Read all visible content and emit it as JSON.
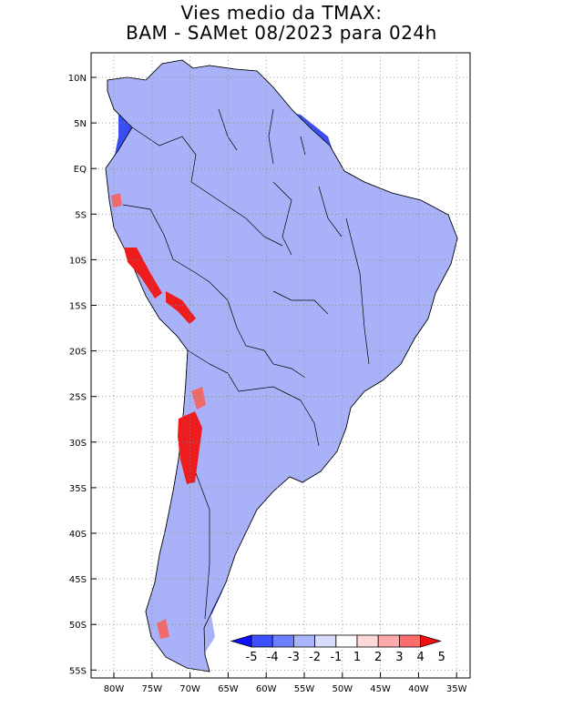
{
  "title": {
    "line1": "Vies medio da TMAX:",
    "line2": "BAM - SAMet 08/2023  para 024h"
  },
  "map": {
    "region": "South America",
    "lat_labels": [
      "10N",
      "5N",
      "EQ",
      "5S",
      "10S",
      "15S",
      "20S",
      "25S",
      "30S",
      "35S",
      "40S",
      "45S",
      "50S",
      "55S"
    ],
    "lon_labels": [
      "80W",
      "75W",
      "70W",
      "65W",
      "60W",
      "55W",
      "50W",
      "45W",
      "40W",
      "35W"
    ],
    "grid": "dotted",
    "field_colors": {
      "strong_cold": "#1a2ef2",
      "cold": "#5b6cf5",
      "mild_cold": "#a9b2f8",
      "neutral": "#ffffff",
      "warm": "#f7b5b5",
      "strong_warm": "#ee1c1c",
      "land_shade": "#f2f4ff"
    }
  },
  "colorbar": {
    "labels": [
      "-5",
      "-4",
      "-3",
      "-2",
      "-1",
      "1",
      "2",
      "3",
      "4",
      "5"
    ],
    "colors": [
      "#1010ff",
      "#3c50ff",
      "#6c80ff",
      "#aab4ff",
      "#d8dcff",
      "#ffffff",
      "#ffd8d8",
      "#ffaaaa",
      "#ff6c6c",
      "#f01010"
    ]
  }
}
